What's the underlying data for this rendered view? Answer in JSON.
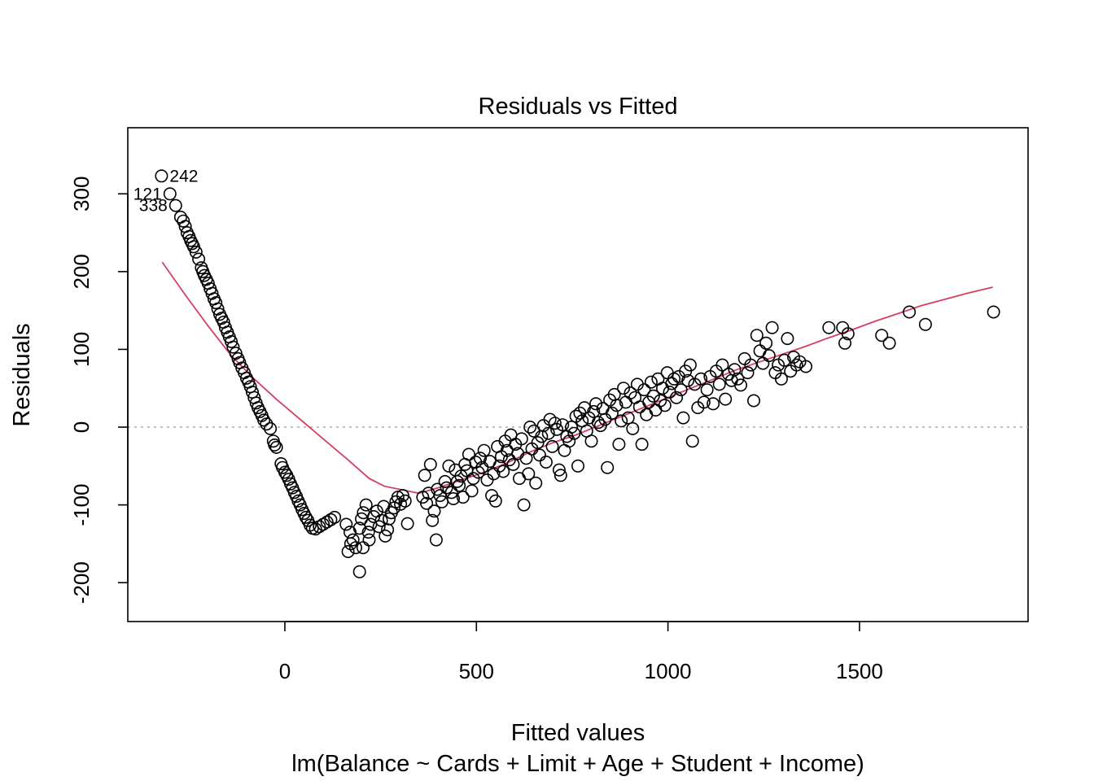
{
  "chart_data": {
    "type": "scatter",
    "title": "Residuals vs Fitted",
    "xlabel": "Fitted values",
    "subtitle": "lm(Balance ~ Cards + Limit + Age + Student + Income)",
    "ylabel": "Residuals",
    "xlim": [
      -410,
      1940
    ],
    "ylim": [
      -250,
      385
    ],
    "xticks": [
      0,
      500,
      1000,
      1500
    ],
    "xtick_labels": [
      "0",
      "500",
      "1000",
      "1500"
    ],
    "yticks": [
      -200,
      -100,
      0,
      100,
      200,
      300
    ],
    "ytick_labels": [
      "-200",
      "-100",
      "0",
      "100",
      "200",
      "300"
    ],
    "grid": false,
    "reference_line": {
      "y": 0,
      "style": "dotted",
      "color": "#aaaaaa"
    },
    "point_color": "#000000",
    "smooth_color": "#d4405f",
    "labeled_points": [
      {
        "label": "242",
        "x": -322,
        "y": 323,
        "side": "right"
      },
      {
        "label": "121",
        "x": -300,
        "y": 300,
        "side": "left"
      },
      {
        "label": "338",
        "x": -285,
        "y": 285,
        "side": "left"
      }
    ],
    "points": [
      [
        -322,
        323
      ],
      [
        -300,
        300
      ],
      [
        -285,
        285
      ],
      [
        -272,
        270
      ],
      [
        -265,
        265
      ],
      [
        -260,
        258
      ],
      [
        -255,
        250
      ],
      [
        -250,
        245
      ],
      [
        -246,
        240
      ],
      [
        -242,
        236
      ],
      [
        -238,
        232
      ],
      [
        -232,
        225
      ],
      [
        -225,
        216
      ],
      [
        -218,
        205
      ],
      [
        -214,
        200
      ],
      [
        -210,
        195
      ],
      [
        -205,
        190
      ],
      [
        -200,
        185
      ],
      [
        -195,
        178
      ],
      [
        -190,
        172
      ],
      [
        -185,
        165
      ],
      [
        -180,
        160
      ],
      [
        -175,
        152
      ],
      [
        -170,
        145
      ],
      [
        -165,
        140
      ],
      [
        -160,
        135
      ],
      [
        -155,
        128
      ],
      [
        -150,
        122
      ],
      [
        -145,
        116
      ],
      [
        -140,
        110
      ],
      [
        -135,
        103
      ],
      [
        -128,
        95
      ],
      [
        -122,
        88
      ],
      [
        -118,
        83
      ],
      [
        -112,
        76
      ],
      [
        -106,
        70
      ],
      [
        -100,
        63
      ],
      [
        -95,
        58
      ],
      [
        -90,
        52
      ],
      [
        -85,
        45
      ],
      [
        -80,
        38
      ],
      [
        -75,
        31
      ],
      [
        -70,
        25
      ],
      [
        -65,
        20
      ],
      [
        -60,
        15
      ],
      [
        -55,
        9
      ],
      [
        -48,
        4
      ],
      [
        -38,
        -2
      ],
      [
        -30,
        -18
      ],
      [
        -27,
        -23
      ],
      [
        -22,
        -26
      ],
      [
        -10,
        -47
      ],
      [
        -6,
        -52
      ],
      [
        0,
        -58
      ],
      [
        5,
        -62
      ],
      [
        10,
        -67
      ],
      [
        15,
        -73
      ],
      [
        20,
        -78
      ],
      [
        25,
        -84
      ],
      [
        30,
        -89
      ],
      [
        35,
        -95
      ],
      [
        40,
        -100
      ],
      [
        45,
        -106
      ],
      [
        50,
        -111
      ],
      [
        55,
        -116
      ],
      [
        60,
        -120
      ],
      [
        66,
        -126
      ],
      [
        72,
        -130
      ],
      [
        80,
        -131
      ],
      [
        90,
        -128
      ],
      [
        100,
        -125
      ],
      [
        110,
        -122
      ],
      [
        120,
        -119
      ],
      [
        130,
        -116
      ],
      [
        160,
        -125
      ],
      [
        170,
        -135
      ],
      [
        178,
        -145
      ],
      [
        185,
        -155
      ],
      [
        165,
        -160
      ],
      [
        172,
        -150
      ],
      [
        195,
        -130
      ],
      [
        200,
        -118
      ],
      [
        205,
        -110
      ],
      [
        212,
        -100
      ],
      [
        218,
        -135
      ],
      [
        224,
        -125
      ],
      [
        232,
        -115
      ],
      [
        240,
        -108
      ],
      [
        246,
        -128
      ],
      [
        252,
        -120
      ],
      [
        258,
        -102
      ],
      [
        262,
        -140
      ],
      [
        268,
        -132
      ],
      [
        272,
        -118
      ],
      [
        278,
        -110
      ],
      [
        285,
        -104
      ],
      [
        290,
        -96
      ],
      [
        295,
        -90
      ],
      [
        302,
        -99
      ],
      [
        308,
        -88
      ],
      [
        314,
        -95
      ],
      [
        320,
        -124
      ],
      [
        195,
        -186
      ],
      [
        204,
        -155
      ],
      [
        220,
        -145
      ],
      [
        360,
        -90
      ],
      [
        365,
        -62
      ],
      [
        370,
        -98
      ],
      [
        375,
        -85
      ],
      [
        380,
        -48
      ],
      [
        385,
        -120
      ],
      [
        390,
        -108
      ],
      [
        395,
        -145
      ],
      [
        398,
        -80
      ],
      [
        405,
        -88
      ],
      [
        410,
        -96
      ],
      [
        418,
        -70
      ],
      [
        422,
        -78
      ],
      [
        428,
        -50
      ],
      [
        435,
        -84
      ],
      [
        440,
        -92
      ],
      [
        445,
        -55
      ],
      [
        450,
        -70
      ],
      [
        455,
        -75
      ],
      [
        460,
        -63
      ],
      [
        465,
        -90
      ],
      [
        470,
        -48
      ],
      [
        475,
        -56
      ],
      [
        480,
        -35
      ],
      [
        488,
        -82
      ],
      [
        492,
        -66
      ],
      [
        498,
        -45
      ],
      [
        505,
        -58
      ],
      [
        510,
        -40
      ],
      [
        515,
        -52
      ],
      [
        520,
        -30
      ],
      [
        528,
        -68
      ],
      [
        535,
        -44
      ],
      [
        540,
        -88
      ],
      [
        545,
        -60
      ],
      [
        550,
        -95
      ],
      [
        555,
        -25
      ],
      [
        560,
        -50
      ],
      [
        565,
        -38
      ],
      [
        570,
        -57
      ],
      [
        575,
        -18
      ],
      [
        580,
        -30
      ],
      [
        586,
        -42
      ],
      [
        590,
        -10
      ],
      [
        596,
        -48
      ],
      [
        602,
        -22
      ],
      [
        608,
        -34
      ],
      [
        612,
        -66
      ],
      [
        618,
        -15
      ],
      [
        624,
        -100
      ],
      [
        630,
        -40
      ],
      [
        636,
        -60
      ],
      [
        640,
        0
      ],
      [
        645,
        -28
      ],
      [
        650,
        -5
      ],
      [
        655,
        -72
      ],
      [
        660,
        -20
      ],
      [
        665,
        -36
      ],
      [
        670,
        -12
      ],
      [
        675,
        2
      ],
      [
        682,
        -45
      ],
      [
        688,
        -8
      ],
      [
        692,
        10
      ],
      [
        698,
        -25
      ],
      [
        705,
        5
      ],
      [
        710,
        -3
      ],
      [
        716,
        -55
      ],
      [
        720,
        -62
      ],
      [
        725,
        3
      ],
      [
        730,
        -30
      ],
      [
        736,
        -12
      ],
      [
        742,
        -18
      ],
      [
        748,
        0
      ],
      [
        755,
        -8
      ],
      [
        760,
        14
      ],
      [
        765,
        -50
      ],
      [
        770,
        18
      ],
      [
        776,
        8
      ],
      [
        782,
        25
      ],
      [
        788,
        -5
      ],
      [
        794,
        12
      ],
      [
        800,
        -18
      ],
      [
        806,
        20
      ],
      [
        812,
        30
      ],
      [
        818,
        6
      ],
      [
        824,
        2
      ],
      [
        830,
        24
      ],
      [
        836,
        10
      ],
      [
        842,
        -52
      ],
      [
        848,
        35
      ],
      [
        854,
        18
      ],
      [
        860,
        42
      ],
      [
        866,
        28
      ],
      [
        872,
        -22
      ],
      [
        878,
        8
      ],
      [
        884,
        50
      ],
      [
        890,
        32
      ],
      [
        896,
        12
      ],
      [
        902,
        44
      ],
      [
        908,
        -2
      ],
      [
        914,
        38
      ],
      [
        920,
        55
      ],
      [
        926,
        26
      ],
      [
        932,
        -22
      ],
      [
        938,
        48
      ],
      [
        944,
        16
      ],
      [
        950,
        32
      ],
      [
        956,
        58
      ],
      [
        962,
        40
      ],
      [
        968,
        22
      ],
      [
        974,
        62
      ],
      [
        980,
        34
      ],
      [
        986,
        50
      ],
      [
        992,
        28
      ],
      [
        998,
        70
      ],
      [
        1004,
        45
      ],
      [
        1010,
        56
      ],
      [
        1016,
        62
      ],
      [
        1022,
        38
      ],
      [
        1028,
        65
      ],
      [
        1034,
        48
      ],
      [
        1040,
        12
      ],
      [
        1046,
        72
      ],
      [
        1052,
        60
      ],
      [
        1058,
        80
      ],
      [
        1064,
        -18
      ],
      [
        1070,
        55
      ],
      [
        1078,
        25
      ],
      [
        1086,
        62
      ],
      [
        1094,
        32
      ],
      [
        1102,
        48
      ],
      [
        1110,
        65
      ],
      [
        1118,
        30
      ],
      [
        1126,
        72
      ],
      [
        1134,
        55
      ],
      [
        1142,
        80
      ],
      [
        1150,
        36
      ],
      [
        1158,
        68
      ],
      [
        1166,
        60
      ],
      [
        1174,
        74
      ],
      [
        1182,
        62
      ],
      [
        1190,
        54
      ],
      [
        1200,
        88
      ],
      [
        1208,
        70
      ],
      [
        1216,
        80
      ],
      [
        1224,
        34
      ],
      [
        1232,
        118
      ],
      [
        1240,
        98
      ],
      [
        1248,
        82
      ],
      [
        1256,
        108
      ],
      [
        1264,
        92
      ],
      [
        1272,
        128
      ],
      [
        1280,
        70
      ],
      [
        1288,
        80
      ],
      [
        1296,
        62
      ],
      [
        1304,
        86
      ],
      [
        1312,
        114
      ],
      [
        1320,
        72
      ],
      [
        1328,
        90
      ],
      [
        1336,
        80
      ],
      [
        1344,
        84
      ],
      [
        1360,
        78
      ],
      [
        1420,
        128
      ],
      [
        1456,
        128
      ],
      [
        1462,
        108
      ],
      [
        1470,
        120
      ],
      [
        1558,
        118
      ],
      [
        1578,
        108
      ],
      [
        1630,
        148
      ],
      [
        1672,
        132
      ],
      [
        1850,
        148
      ]
    ],
    "smooth_line": [
      [
        -320,
        212
      ],
      [
        -260,
        170
      ],
      [
        -200,
        130
      ],
      [
        -140,
        92
      ],
      [
        -80,
        62
      ],
      [
        -20,
        35
      ],
      [
        40,
        10
      ],
      [
        100,
        -15
      ],
      [
        160,
        -40
      ],
      [
        220,
        -66
      ],
      [
        260,
        -76
      ],
      [
        300,
        -80
      ],
      [
        350,
        -85
      ],
      [
        400,
        -78
      ],
      [
        460,
        -68
      ],
      [
        520,
        -58
      ],
      [
        580,
        -46
      ],
      [
        640,
        -32
      ],
      [
        700,
        -20
      ],
      [
        760,
        -10
      ],
      [
        820,
        2
      ],
      [
        880,
        14
      ],
      [
        940,
        26
      ],
      [
        1000,
        38
      ],
      [
        1060,
        50
      ],
      [
        1120,
        62
      ],
      [
        1180,
        74
      ],
      [
        1240,
        84
      ],
      [
        1300,
        94
      ],
      [
        1360,
        104
      ],
      [
        1420,
        115
      ],
      [
        1480,
        125
      ],
      [
        1540,
        136
      ],
      [
        1600,
        146
      ],
      [
        1660,
        156
      ],
      [
        1720,
        164
      ],
      [
        1780,
        172
      ],
      [
        1848,
        180
      ]
    ]
  }
}
